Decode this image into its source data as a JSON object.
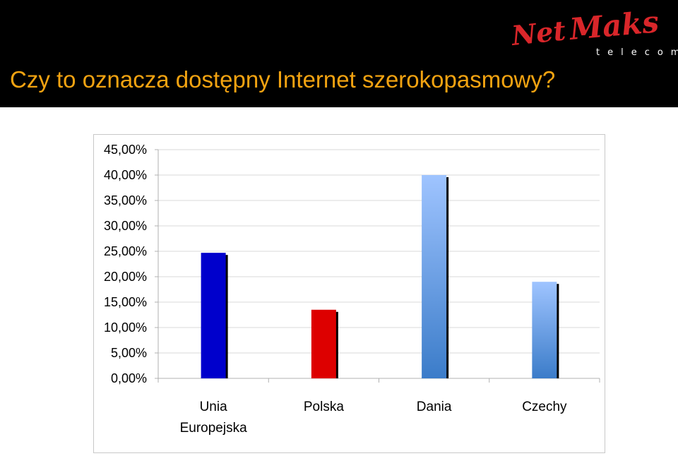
{
  "header": {
    "title": "Czy to oznacza dostępny Internet szerokopasmowy?",
    "logo": {
      "name": "Net Maks",
      "sub": "telecom"
    }
  },
  "colors": {
    "header_bg": "#000000",
    "title": "#f3a311",
    "logo_text": "#d9262a",
    "logo_sub": "#ffffff"
  },
  "chart_data": {
    "type": "bar",
    "title": "",
    "xlabel": "",
    "ylabel": "",
    "categories": [
      [
        "Unia",
        "Europejska"
      ],
      [
        "Polska"
      ],
      [
        "Dania"
      ],
      [
        "Czechy"
      ]
    ],
    "values": [
      24.7,
      13.5,
      40.0,
      19.0
    ],
    "ylim": [
      0,
      45
    ],
    "yticks": [
      0,
      5,
      10,
      15,
      20,
      25,
      30,
      35,
      40,
      45
    ],
    "ytick_labels": [
      "0,00%",
      "5,00%",
      "10,00%",
      "15,00%",
      "20,00%",
      "25,00%",
      "30,00%",
      "35,00%",
      "40,00%",
      "45,00%"
    ],
    "grid": true,
    "legend": "none",
    "bar_colors": [
      [
        "#0000cc",
        "#0000cc"
      ],
      [
        "#dd0000",
        "#dd0000"
      ],
      [
        "#9fc4ff",
        "#3b7cc9"
      ],
      [
        "#9fc4ff",
        "#3b7cc9"
      ]
    ]
  }
}
